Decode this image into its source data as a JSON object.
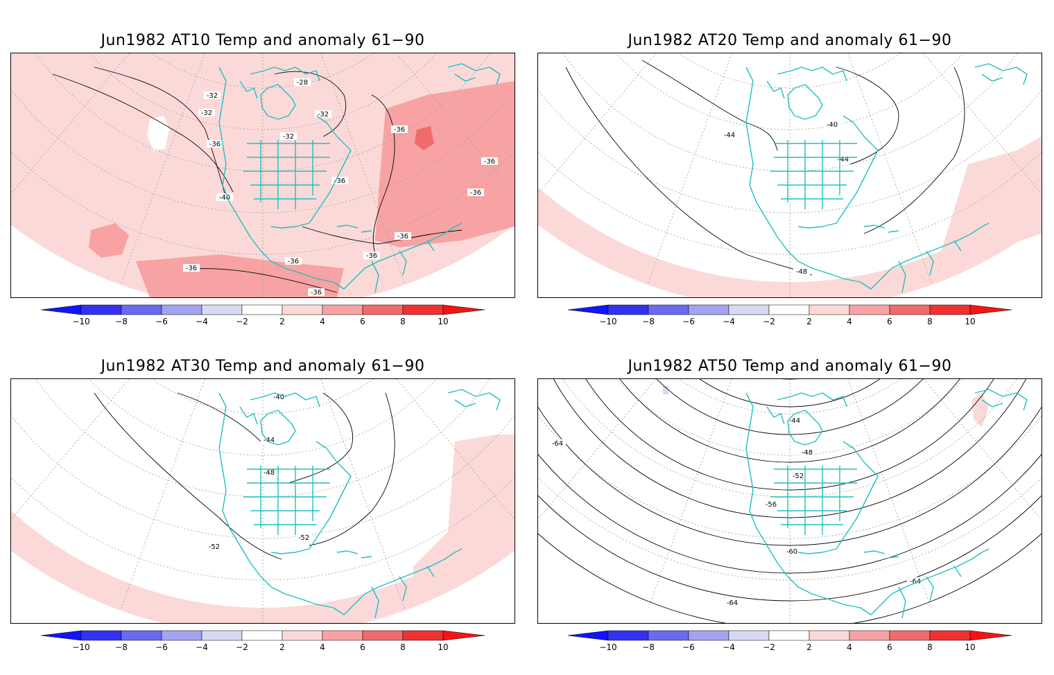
{
  "colors": {
    "coast": "#1fbfbf",
    "anom_pos_1": "#fcd9d9",
    "anom_pos_2": "#f7a3a3",
    "anom_pos_3": "#f06b6b",
    "anom_pos_4": "#f03232",
    "anom_neg_1": "#d9d9f5",
    "anom_neg_2": "#a3a3f0",
    "anom_neg_3": "#6b6bf0",
    "anom_neg_4": "#3232f0",
    "arrow_neg": "#1414f5",
    "arrow_pos": "#f51414",
    "frame": "#000000",
    "grid": "#9a9a9a",
    "contour": "#000000"
  },
  "colorbar": {
    "ticks": [
      "−10",
      "−8",
      "−6",
      "−4",
      "−2",
      "2",
      "4",
      "6",
      "8",
      "10"
    ]
  },
  "panels": [
    {
      "id": "at10",
      "title": "Jun1982 AT10 Temp and anomaly 61−90",
      "contour_labels": [
        "-28",
        "-32",
        "-32",
        "-32",
        "-32",
        "-36",
        "-36",
        "-36",
        "-36",
        "-36",
        "-36",
        "-36",
        "-36",
        "-36",
        "-36",
        "-40"
      ]
    },
    {
      "id": "at20",
      "title": "Jun1982 AT20 Temp and anomaly 61−90",
      "contour_labels": [
        "-40",
        "-44",
        "-44",
        "-48"
      ]
    },
    {
      "id": "at30",
      "title": "Jun1982 AT30 Temp and anomaly 61−90",
      "contour_labels": [
        "-40",
        "-44",
        "-48",
        "-52",
        "-52"
      ]
    },
    {
      "id": "at50",
      "title": "Jun1982 AT50 Temp and anomaly 61−90",
      "contour_labels": [
        "-44",
        "-48",
        "-52",
        "-56",
        "-60",
        "-64",
        "-64",
        "-64"
      ]
    }
  ]
}
